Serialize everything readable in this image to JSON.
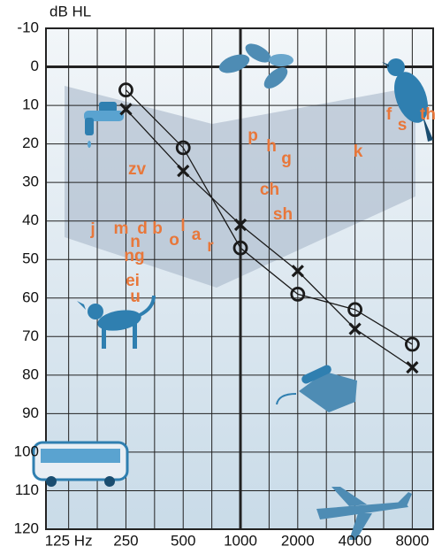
{
  "chart_data": {
    "type": "line",
    "y_label": "dB HL",
    "x": [
      250,
      500,
      1000,
      2000,
      4000,
      8000
    ],
    "series": [
      {
        "marker": "o",
        "color": "#1a1a1a",
        "values": [
          6,
          21,
          47,
          59,
          63,
          72
        ]
      },
      {
        "marker": "x",
        "color": "#1a1a1a",
        "values": [
          11,
          27,
          41,
          53,
          68,
          78
        ]
      }
    ],
    "xlim": [
      95,
      10300
    ],
    "x_log": true,
    "xticks": [
      {
        "value": 125,
        "label": "125 Hz"
      },
      250,
      500,
      1000,
      2000,
      4000,
      8000
    ],
    "ylim": [
      -10,
      120
    ],
    "y_inverted": true,
    "yticks": [
      -10,
      0,
      10,
      20,
      30,
      40,
      50,
      60,
      70,
      80,
      90,
      100,
      110,
      120
    ],
    "bold_xtick": 1000,
    "bold_ytick": 0,
    "grid": true,
    "annotation_color": "#e8773a",
    "annotations": [
      "f",
      "s",
      "th",
      "p",
      "h",
      "g",
      "k",
      "zv",
      "ch",
      "sh",
      "j",
      "m",
      "d",
      "b",
      "n",
      "o",
      "l",
      "a",
      "r",
      "ng",
      "ei",
      "u"
    ]
  }
}
